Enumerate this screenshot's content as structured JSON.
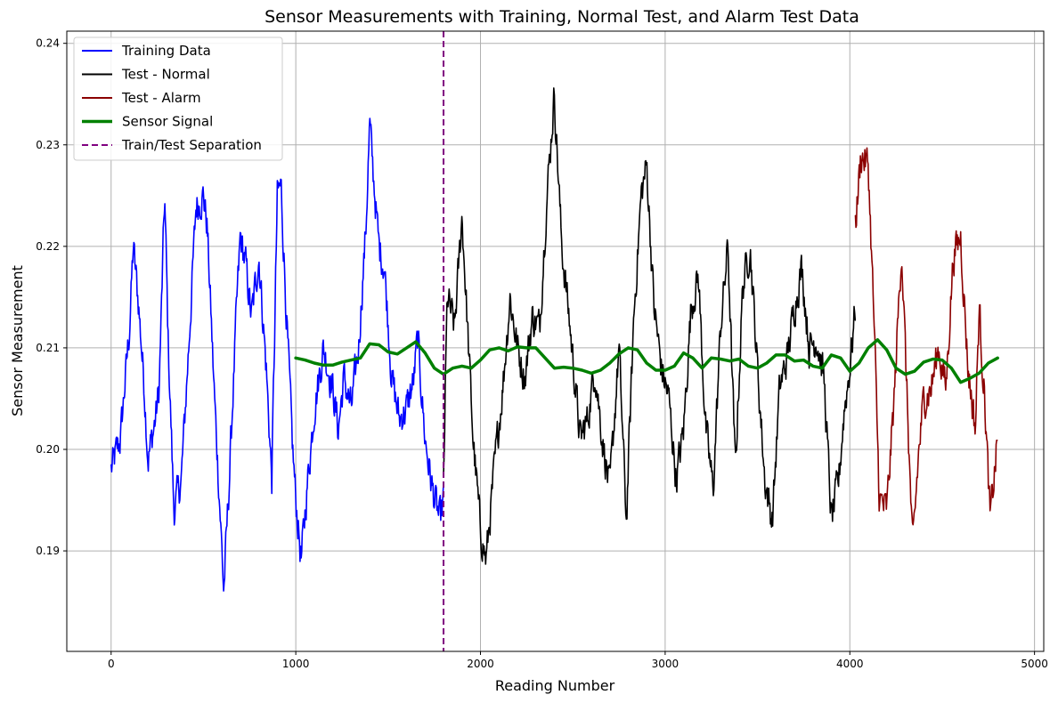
{
  "chart_data": {
    "type": "line",
    "title": "Sensor Measurements with Training, Normal Test, and Alarm Test Data",
    "xlabel": "Reading Number",
    "ylabel": "Sensor Measurement",
    "xlim": [
      -240,
      5050
    ],
    "ylim": [
      0.1801,
      0.2412
    ],
    "xticks": [
      0,
      1000,
      2000,
      3000,
      4000,
      5000
    ],
    "xtick_labels": [
      "0",
      "1000",
      "2000",
      "3000",
      "4000",
      "5000"
    ],
    "yticks": [
      0.19,
      0.2,
      0.21,
      0.22,
      0.23,
      0.24
    ],
    "ytick_labels": [
      "0.19",
      "0.20",
      "0.21",
      "0.22",
      "0.23",
      "0.24"
    ],
    "grid": true,
    "legend_position": "upper-left",
    "separation_x": 1800,
    "colors": {
      "training": "#0000ff",
      "normal": "#000000",
      "alarm": "#8b0000",
      "signal": "#008000",
      "separation": "#800080",
      "grid": "#b0b0b0"
    },
    "series": [
      {
        "name": "Training Data",
        "color": "#0000ff",
        "noise": 0.0028,
        "x": [
          0,
          50,
          100,
          120,
          150,
          180,
          200,
          240,
          260,
          290,
          310,
          340,
          380,
          420,
          460,
          500,
          520,
          560,
          590,
          610,
          640,
          680,
          700,
          730,
          760,
          800,
          840,
          870,
          900,
          920,
          950,
          980,
          1000,
          1030,
          1060,
          1100,
          1150,
          1200,
          1230,
          1260,
          1300,
          1340,
          1380,
          1400,
          1420,
          1450,
          1480,
          1520,
          1560,
          1600,
          1640,
          1660,
          1700,
          1740,
          1780,
          1800
        ],
        "values": [
          0.198,
          0.201,
          0.212,
          0.22,
          0.214,
          0.206,
          0.199,
          0.203,
          0.206,
          0.225,
          0.21,
          0.194,
          0.197,
          0.21,
          0.224,
          0.225,
          0.222,
          0.205,
          0.194,
          0.186,
          0.197,
          0.214,
          0.221,
          0.218,
          0.213,
          0.219,
          0.208,
          0.197,
          0.225,
          0.226,
          0.213,
          0.201,
          0.195,
          0.189,
          0.196,
          0.204,
          0.21,
          0.206,
          0.202,
          0.207,
          0.204,
          0.21,
          0.222,
          0.232,
          0.227,
          0.22,
          0.218,
          0.207,
          0.203,
          0.204,
          0.207,
          0.211,
          0.201,
          0.196,
          0.193,
          0.195
        ]
      },
      {
        "name": "Test - Normal",
        "color": "#000000",
        "noise": 0.0028,
        "x": [
          1800,
          1820,
          1860,
          1900,
          1960,
          2000,
          2030,
          2080,
          2120,
          2160,
          2200,
          2240,
          2280,
          2320,
          2360,
          2400,
          2440,
          2480,
          2540,
          2580,
          2620,
          2660,
          2700,
          2750,
          2790,
          2830,
          2870,
          2900,
          2940,
          2980,
          3020,
          3060,
          3100,
          3140,
          3180,
          3220,
          3260,
          3300,
          3340,
          3380,
          3420,
          3460,
          3500,
          3540,
          3580,
          3620,
          3660,
          3700,
          3740,
          3780,
          3820,
          3860,
          3900,
          3940,
          3970,
          4000,
          4030
        ],
        "values": [
          0.197,
          0.215,
          0.212,
          0.223,
          0.201,
          0.192,
          0.189,
          0.199,
          0.206,
          0.215,
          0.21,
          0.207,
          0.213,
          0.212,
          0.225,
          0.235,
          0.22,
          0.213,
          0.201,
          0.203,
          0.208,
          0.201,
          0.196,
          0.21,
          0.193,
          0.213,
          0.225,
          0.228,
          0.214,
          0.208,
          0.205,
          0.197,
          0.202,
          0.214,
          0.217,
          0.202,
          0.196,
          0.212,
          0.22,
          0.198,
          0.216,
          0.22,
          0.208,
          0.197,
          0.193,
          0.206,
          0.209,
          0.214,
          0.218,
          0.21,
          0.211,
          0.207,
          0.193,
          0.197,
          0.204,
          0.208,
          0.214
        ]
      },
      {
        "name": "Test - Alarm",
        "color": "#8b0000",
        "noise": 0.0028,
        "x": [
          4030,
          4060,
          4100,
          4130,
          4160,
          4200,
          4240,
          4280,
          4310,
          4340,
          4370,
          4400,
          4440,
          4480,
          4520,
          4560,
          4600,
          4640,
          4680,
          4700,
          4730,
          4760,
          4800
        ],
        "values": [
          0.222,
          0.229,
          0.228,
          0.213,
          0.195,
          0.194,
          0.205,
          0.22,
          0.205,
          0.19,
          0.199,
          0.205,
          0.206,
          0.21,
          0.206,
          0.219,
          0.221,
          0.208,
          0.202,
          0.214,
          0.205,
          0.193,
          0.201
        ]
      },
      {
        "name": "Sensor Signal",
        "color": "#008000",
        "noise": 0,
        "x": [
          1000,
          1050,
          1100,
          1150,
          1200,
          1250,
          1300,
          1350,
          1400,
          1450,
          1500,
          1550,
          1600,
          1650,
          1700,
          1750,
          1800,
          1850,
          1900,
          1950,
          2000,
          2050,
          2100,
          2150,
          2200,
          2250,
          2300,
          2350,
          2400,
          2450,
          2500,
          2550,
          2600,
          2650,
          2700,
          2750,
          2800,
          2850,
          2900,
          2950,
          3000,
          3050,
          3100,
          3150,
          3200,
          3250,
          3300,
          3350,
          3400,
          3450,
          3500,
          3550,
          3600,
          3650,
          3700,
          3750,
          3800,
          3850,
          3900,
          3950,
          4000,
          4050,
          4100,
          4150,
          4200,
          4250,
          4300,
          4350,
          4400,
          4450,
          4500,
          4550,
          4600,
          4650,
          4700,
          4750,
          4800
        ],
        "values": [
          0.209,
          0.2088,
          0.2085,
          0.2083,
          0.2083,
          0.2086,
          0.2088,
          0.209,
          0.2104,
          0.2103,
          0.2096,
          0.2094,
          0.21,
          0.2106,
          0.2095,
          0.208,
          0.2074,
          0.208,
          0.2082,
          0.208,
          0.2088,
          0.2098,
          0.21,
          0.2097,
          0.2101,
          0.21,
          0.21,
          0.209,
          0.208,
          0.2081,
          0.208,
          0.2078,
          0.2075,
          0.2078,
          0.2085,
          0.2094,
          0.21,
          0.2098,
          0.2085,
          0.2078,
          0.2078,
          0.2082,
          0.2095,
          0.209,
          0.208,
          0.209,
          0.2089,
          0.2087,
          0.2089,
          0.2082,
          0.208,
          0.2085,
          0.2093,
          0.2093,
          0.2087,
          0.2088,
          0.2082,
          0.208,
          0.2093,
          0.209,
          0.2077,
          0.2085,
          0.21,
          0.2108,
          0.2098,
          0.208,
          0.2074,
          0.2077,
          0.2086,
          0.2089,
          0.2088,
          0.208,
          0.2066,
          0.207,
          0.2075,
          0.2085,
          0.209
        ]
      }
    ],
    "separation": {
      "name": "Train/Test Separation",
      "x": 1800,
      "color": "#800080"
    },
    "legend": [
      {
        "label": "Training Data",
        "color": "#0000ff",
        "style": "solid",
        "key": "training"
      },
      {
        "label": "Test - Normal",
        "color": "#000000",
        "style": "solid",
        "key": "normal"
      },
      {
        "label": "Test - Alarm",
        "color": "#8b0000",
        "style": "solid",
        "key": "alarm"
      },
      {
        "label": "Sensor Signal",
        "color": "#008000",
        "style": "thick",
        "key": "signal"
      },
      {
        "label": "Train/Test Separation",
        "color": "#800080",
        "style": "dashed",
        "key": "separation"
      }
    ]
  }
}
